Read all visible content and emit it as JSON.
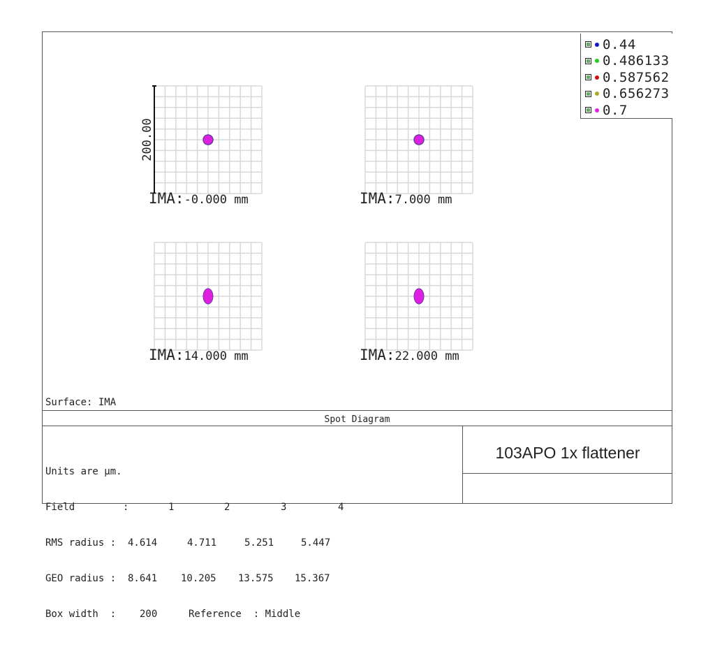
{
  "legend": [
    {
      "label": "0.44",
      "color": "#1111cc"
    },
    {
      "label": "0.486133",
      "color": "#22cc22"
    },
    {
      "label": "0.587562",
      "color": "#cc1111"
    },
    {
      "label": "0.656273",
      "color": "#aaaa22"
    },
    {
      "label": "0.7",
      "color": "#e020e0"
    }
  ],
  "scale_label": "200.00",
  "spots": [
    {
      "label": "IMA:",
      "value": "-0.000 mm",
      "shape": "circle"
    },
    {
      "label": "IMA:",
      "value": "7.000 mm",
      "shape": "circle"
    },
    {
      "label": "IMA:",
      "value": "14.000 mm",
      "shape": "ellipse"
    },
    {
      "label": "IMA:",
      "value": "22.000 mm",
      "shape": "ellipse"
    }
  ],
  "surface_text": "Surface: IMA",
  "diagram_title": "Spot Diagram",
  "stats": {
    "units": "Units are µm.",
    "field_label": "Field",
    "field_sep": ":",
    "fields": [
      "1",
      "2",
      "3",
      "4"
    ],
    "rms_label": "RMS radius :",
    "rms": [
      "4.614",
      "4.711",
      "5.251",
      "5.447"
    ],
    "geo_label": "GEO radius :",
    "geo": [
      "8.641",
      "10.205",
      "13.575",
      "15.367"
    ],
    "box_label": "Box width  :",
    "box_value": "200",
    "reference": "Reference  : Middle"
  },
  "lens_title": "103APO 1x flattener",
  "colors": {
    "spot": "#e020e0",
    "spot_edge": "#6a3aa0",
    "grid": "#d8d8d8"
  }
}
